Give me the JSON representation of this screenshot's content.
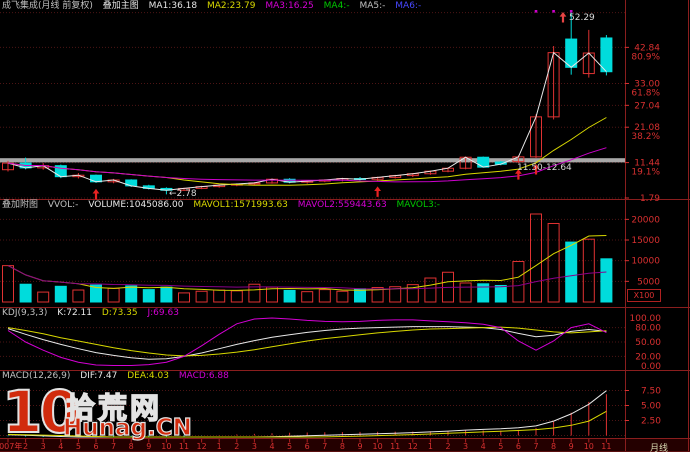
{
  "header": {
    "title": "成飞集成(月线 前复权)",
    "overlay": "叠加主图",
    "ma1": "MA1:36.18",
    "ma2": "MA2:23.79",
    "ma3": "MA3:16.25",
    "ma4": "MA4:-",
    "ma5": "MA5:-",
    "ma6": "MA6:-"
  },
  "vheader": {
    "overlay": "叠加附图",
    "vvol": "VVOL:-",
    "volume": "VOLUME:1045086.00",
    "mavol1": "MAVOL1:1571993.63",
    "mavol2": "MAVOL2:559443.63",
    "mavol3": "MAVOL3:-"
  },
  "kheader": {
    "name": "KDJ(9,3,3)",
    "k": "K:72.11",
    "d": "D:73.35",
    "j": "J:69.63"
  },
  "mheader": {
    "name": "MACD(12,26,9)",
    "dif": "DIF:7.47",
    "dea": "DEA:4.03",
    "macd": "MACD:6.88"
  },
  "annotations": {
    "high": "52.29",
    "low": "←2.78",
    "band": "11.50-12.64"
  },
  "axis": {
    "period": "月线"
  },
  "watermark": {
    "big": "10",
    "site": "拾荒网",
    "url": "Hunag.CN"
  },
  "markers": {
    "up_arrows": [
      5,
      21,
      29,
      30
    ],
    "top_dots": [
      30,
      31,
      32
    ]
  },
  "colors": {
    "background": "#000000",
    "up": "#e03232",
    "down": "#00dcdc",
    "ma1": "#e8e8e8",
    "ma2": "#d8d800",
    "ma3": "#cc00cc",
    "mavol2_dim": "#8a008a",
    "axis_text": "#d83030",
    "grid": "#4c1414",
    "frame": "#8a1e1e",
    "band": "#a8a8a8",
    "marker": "#e82222",
    "strip_bg": "#240000"
  },
  "chart_data": [
    {
      "type": "candlestick",
      "title": "成飞集成 月线 前复权",
      "ylim": [
        1.79,
        52.29
      ],
      "months": [
        "2007年",
        "2",
        "3",
        "4",
        "5",
        "6",
        "7",
        "8",
        "9",
        "10",
        "11",
        "12",
        "1",
        "2",
        "3",
        "4",
        "5",
        "6",
        "7",
        "8",
        "9",
        "10",
        "11",
        "12",
        "1",
        "2",
        "3",
        "4",
        "5",
        "6",
        "7",
        "8",
        "9",
        "10",
        "11"
      ],
      "ohlc": [
        [
          9.5,
          11.9,
          9.0,
          11.3
        ],
        [
          11.3,
          12.8,
          9.6,
          10.0
        ],
        [
          10.0,
          11.3,
          9.5,
          10.6
        ],
        [
          10.6,
          10.9,
          7.2,
          7.6
        ],
        [
          7.6,
          8.6,
          7.1,
          8.0
        ],
        [
          8.0,
          8.2,
          5.9,
          6.2
        ],
        [
          6.2,
          7.0,
          5.8,
          6.7
        ],
        [
          6.7,
          6.9,
          4.8,
          5.1
        ],
        [
          5.1,
          5.4,
          4.1,
          4.4
        ],
        [
          4.4,
          4.7,
          2.78,
          3.9
        ],
        [
          3.9,
          4.6,
          3.7,
          4.4
        ],
        [
          4.4,
          5.1,
          4.2,
          4.9
        ],
        [
          4.9,
          5.5,
          4.6,
          5.3
        ],
        [
          5.3,
          5.8,
          5.0,
          5.6
        ],
        [
          5.6,
          6.1,
          5.3,
          5.9
        ],
        [
          5.9,
          7.1,
          5.7,
          6.9
        ],
        [
          6.9,
          7.2,
          5.8,
          6.1
        ],
        [
          6.1,
          6.6,
          5.7,
          6.4
        ],
        [
          6.4,
          6.9,
          6.1,
          6.7
        ],
        [
          6.7,
          7.3,
          6.3,
          7.1
        ],
        [
          7.1,
          7.5,
          6.6,
          6.9
        ],
        [
          6.9,
          7.6,
          6.6,
          7.4
        ],
        [
          7.4,
          8.1,
          7.1,
          7.9
        ],
        [
          7.9,
          8.6,
          7.5,
          8.4
        ],
        [
          8.4,
          9.3,
          8.1,
          9.1
        ],
        [
          9.1,
          10.1,
          8.8,
          9.9
        ],
        [
          9.9,
          13.1,
          9.6,
          12.9
        ],
        [
          12.9,
          13.1,
          10.1,
          10.2
        ],
        [
          11.6,
          11.9,
          10.7,
          11.0
        ],
        [
          11.7,
          13.4,
          11.3,
          13.0
        ],
        [
          13.0,
          24.6,
          12.7,
          23.9
        ],
        [
          23.9,
          43.2,
          23.2,
          41.4
        ],
        [
          45.1,
          52.29,
          35.4,
          37.4
        ],
        [
          35.7,
          47.6,
          34.6,
          41.3
        ],
        [
          45.4,
          46.2,
          35.2,
          36.2
        ]
      ],
      "ma_periods": {
        "ma1": 1,
        "ma2": 10,
        "ma3": 20
      },
      "fib_levels": [
        {
          "price": 42.84,
          "label": "42.84",
          "pct": "80.9%"
        },
        {
          "price": 33.0,
          "label": "33.00",
          "pct": "61.8%"
        },
        {
          "price": 27.04,
          "label": "27.04",
          "pct": ""
        },
        {
          "price": 21.08,
          "label": "21.08",
          "pct": "38.2%"
        },
        {
          "price": 11.44,
          "label": "11.44",
          "pct": "19.1%"
        },
        {
          "price": 1.79,
          "label": "1.79",
          "pct": ""
        }
      ],
      "band": {
        "low": 11.5,
        "high": 12.64,
        "label": "11.50-12.64"
      },
      "high_annotation": 52.29,
      "low_annotation": 2.78
    },
    {
      "type": "bar",
      "name": "volume",
      "unit": "X100",
      "values": [
        8800,
        4300,
        2400,
        3800,
        2900,
        4100,
        3300,
        3900,
        3000,
        3600,
        2200,
        2600,
        2900,
        2700,
        4300,
        3600,
        2800,
        2500,
        3000,
        2600,
        3200,
        3500,
        3700,
        4200,
        5800,
        7200,
        4600,
        4400,
        4000,
        9800,
        21300,
        19000,
        14500,
        15200,
        10451
      ],
      "tick_values": [
        20000,
        15000,
        10000,
        5000
      ],
      "tick_labels": [
        "20000",
        "15000",
        "10000",
        "5000"
      ],
      "mavol_periods": [
        5,
        20
      ]
    },
    {
      "type": "line",
      "name": "KDJ",
      "ylim": [
        0,
        100
      ],
      "tick_values": [
        100,
        80,
        50,
        20,
        0
      ],
      "tick_labels": [
        "100.00",
        "80.00",
        "50.00",
        "20.00",
        "0.00"
      ],
      "series": [
        {
          "name": "K",
          "color": "#e8e8e8",
          "values": [
            78,
            66,
            55,
            45,
            36,
            28,
            22,
            17,
            14,
            15,
            20,
            27,
            36,
            45,
            53,
            60,
            65,
            70,
            74,
            77,
            79,
            80,
            81,
            82,
            82,
            82,
            81,
            80,
            76,
            68,
            61,
            64,
            72,
            76,
            72.11
          ]
        },
        {
          "name": "D",
          "color": "#d8d800",
          "values": [
            80,
            74,
            67,
            59,
            52,
            45,
            38,
            32,
            27,
            23,
            21,
            22,
            25,
            29,
            34,
            40,
            46,
            52,
            57,
            61,
            65,
            69,
            72,
            75,
            77,
            78,
            79,
            80,
            81,
            79,
            75,
            71,
            69,
            71,
            73.35
          ]
        },
        {
          "name": "J",
          "color": "#d400d4",
          "values": [
            74,
            50,
            33,
            18,
            8,
            2,
            1,
            1,
            3,
            8,
            20,
            42,
            66,
            88,
            98,
            100,
            98,
            95,
            93,
            92,
            93,
            95,
            96,
            96,
            94,
            92,
            90,
            87,
            80,
            52,
            33,
            52,
            80,
            88,
            69.63
          ]
        }
      ]
    },
    {
      "type": "line+histogram",
      "name": "MACD",
      "tick_values": [
        7.5,
        5.0,
        2.5
      ],
      "tick_labels": [
        "7.50",
        "5.00",
        "2.50"
      ],
      "histogram_rule": "2*(DIF-DEA)",
      "series": [
        {
          "name": "DIF",
          "color": "#e8e8e8",
          "values": [
            0.12,
            0.04,
            -0.06,
            -0.17,
            -0.28,
            -0.38,
            -0.47,
            -0.54,
            -0.58,
            -0.6,
            -0.57,
            -0.52,
            -0.46,
            -0.39,
            -0.31,
            -0.22,
            -0.13,
            -0.05,
            0.03,
            0.11,
            0.2,
            0.29,
            0.38,
            0.48,
            0.6,
            0.74,
            0.9,
            1.02,
            1.12,
            1.3,
            1.6,
            2.4,
            3.6,
            5.2,
            7.47
          ]
        },
        {
          "name": "DEA",
          "color": "#d8d800",
          "values": [
            0.18,
            0.13,
            0.07,
            0.0,
            -0.08,
            -0.17,
            -0.25,
            -0.33,
            -0.4,
            -0.45,
            -0.48,
            -0.5,
            -0.5,
            -0.48,
            -0.45,
            -0.41,
            -0.36,
            -0.3,
            -0.24,
            -0.17,
            -0.1,
            -0.02,
            0.06,
            0.15,
            0.25,
            0.36,
            0.48,
            0.6,
            0.71,
            0.83,
            0.98,
            1.25,
            1.7,
            2.4,
            4.03
          ]
        }
      ]
    }
  ]
}
